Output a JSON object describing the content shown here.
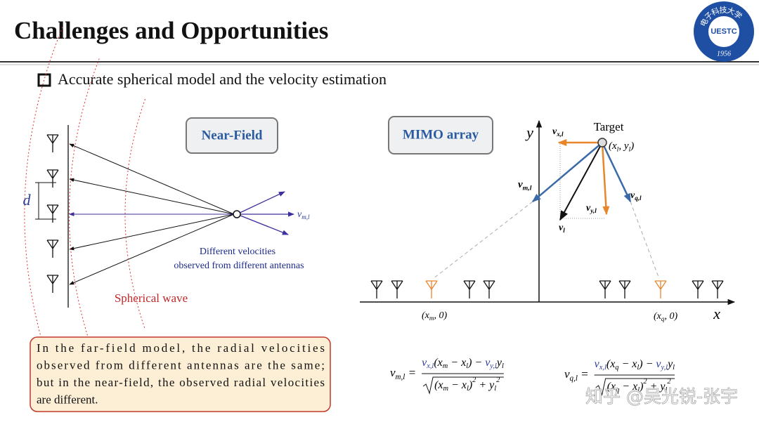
{
  "header": {
    "title": "Challenges and Opportunities",
    "logo": {
      "ring": "电子科技大学",
      "name": "UESTC",
      "year": "1956"
    }
  },
  "bullet": "Accurate spherical model and the velocity estimation",
  "near_field": {
    "label": "Near-Field",
    "spacing": "d",
    "velocity": [
      {
        "t": "v",
        "sub": "m,l"
      }
    ],
    "note": [
      "Different velocities",
      "observed from different antennas"
    ],
    "wave": "Spherical wave"
  },
  "mimo": {
    "label": "MIMO array",
    "x_axis": "x",
    "y_axis": "y",
    "target": "Target",
    "target_pos": [
      {
        "t": "(x",
        "sub": "l"
      },
      {
        "t": ", y",
        "sub": "l"
      },
      {
        "t": ")"
      }
    ],
    "vx": [
      {
        "t": "v",
        "sub": "x,l"
      }
    ],
    "vy": [
      {
        "t": "v",
        "sub": "y,l"
      }
    ],
    "v": [
      {
        "t": "v",
        "sub": "l"
      }
    ],
    "vm": [
      {
        "t": "v",
        "sub": "m,l"
      }
    ],
    "vq": [
      {
        "t": "v",
        "sub": "q,l"
      }
    ],
    "xm": [
      {
        "t": "(x",
        "sub": "m"
      },
      {
        "t": ", 0)"
      }
    ],
    "xq": [
      {
        "t": "(x",
        "sub": "q"
      },
      {
        "t": ", 0)"
      }
    ]
  },
  "note": [
    "In the far-field model, the radial velocities",
    "observed from different antennas are the same;",
    "but in the near-field, the observed radial velocities",
    "are different."
  ],
  "formulas": [
    {
      "lhs": [
        {
          "t": "v",
          "sub": "m,l"
        },
        {
          "t": " ="
        }
      ],
      "num": [
        {
          "t": "v",
          "sub": "x,l",
          "color": "#2b3a9e"
        },
        {
          "t": "(x",
          "sub": "m"
        },
        {
          "t": " − x",
          "sub": "l"
        },
        {
          "t": ") − "
        },
        {
          "t": "v",
          "sub": "y,l",
          "color": "#2b3a9e"
        },
        {
          "t": "y",
          "sub": "l"
        }
      ],
      "den": [
        {
          "t": "(x",
          "sub": "m"
        },
        {
          "t": " − x",
          "sub": "l"
        },
        {
          "t": ")",
          "sup": "2"
        },
        {
          "t": " + y",
          "sub": "l",
          "sup": "2"
        }
      ]
    },
    {
      "lhs": [
        {
          "t": "v",
          "sub": "q,l"
        },
        {
          "t": " ="
        }
      ],
      "num": [
        {
          "t": "v",
          "sub": "x,l",
          "color": "#2b3a9e"
        },
        {
          "t": "(x",
          "sub": "q"
        },
        {
          "t": " − x",
          "sub": "l"
        },
        {
          "t": ") − "
        },
        {
          "t": "v",
          "sub": "y,l",
          "color": "#2b3a9e"
        },
        {
          "t": "y",
          "sub": "l"
        }
      ],
      "den": [
        {
          "t": "(x",
          "sub": "q"
        },
        {
          "t": " − x",
          "sub": "l"
        },
        {
          "t": ")",
          "sup": "2"
        },
        {
          "t": " + y",
          "sub": "l",
          "sup": "2"
        }
      ]
    }
  ],
  "watermark": "知乎 @吴光锐-张宇"
}
